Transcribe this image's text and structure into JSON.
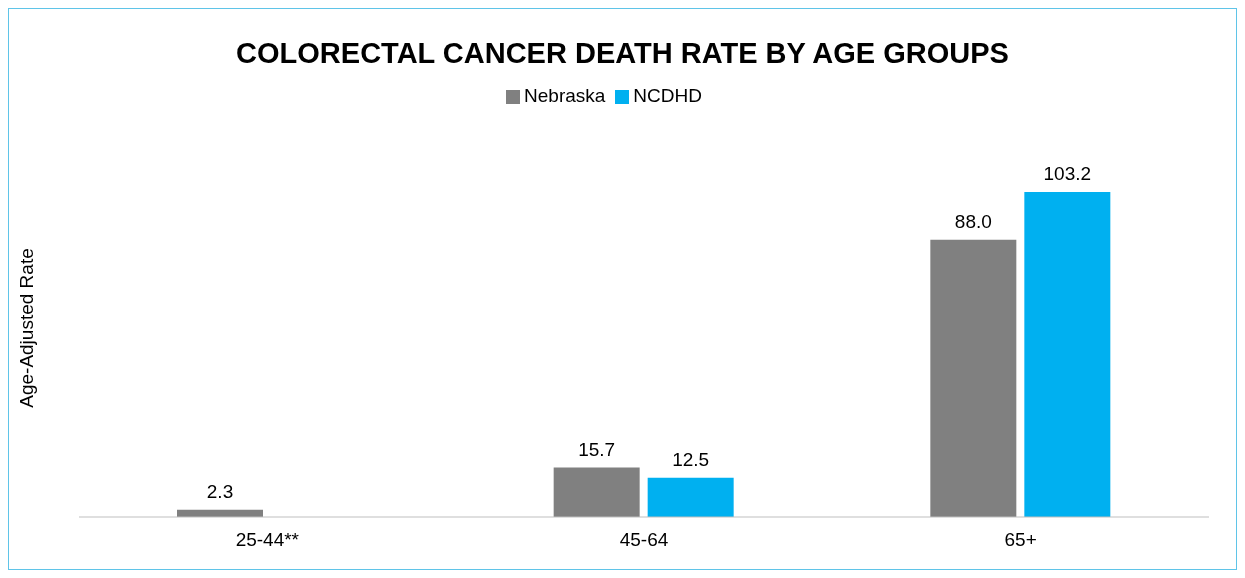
{
  "chart_data": {
    "type": "bar",
    "title": "COLORECTAL CANCER DEATH RATE BY AGE GROUPS",
    "ylabel": "Age-Adjusted Rate",
    "categories": [
      "25-44**",
      "45-64",
      "65+"
    ],
    "series": [
      {
        "name": "Nebraska",
        "color": "#808080",
        "values": [
          2.3,
          15.7,
          88.0
        ],
        "value_labels": [
          "2.3",
          "15.7",
          "88.0"
        ]
      },
      {
        "name": "NCDHD",
        "color": "#00b0f0",
        "values": [
          null,
          12.5,
          103.2
        ],
        "value_labels": [
          null,
          "12.5",
          "103.2"
        ]
      }
    ],
    "legend": "top",
    "grid": false
  }
}
